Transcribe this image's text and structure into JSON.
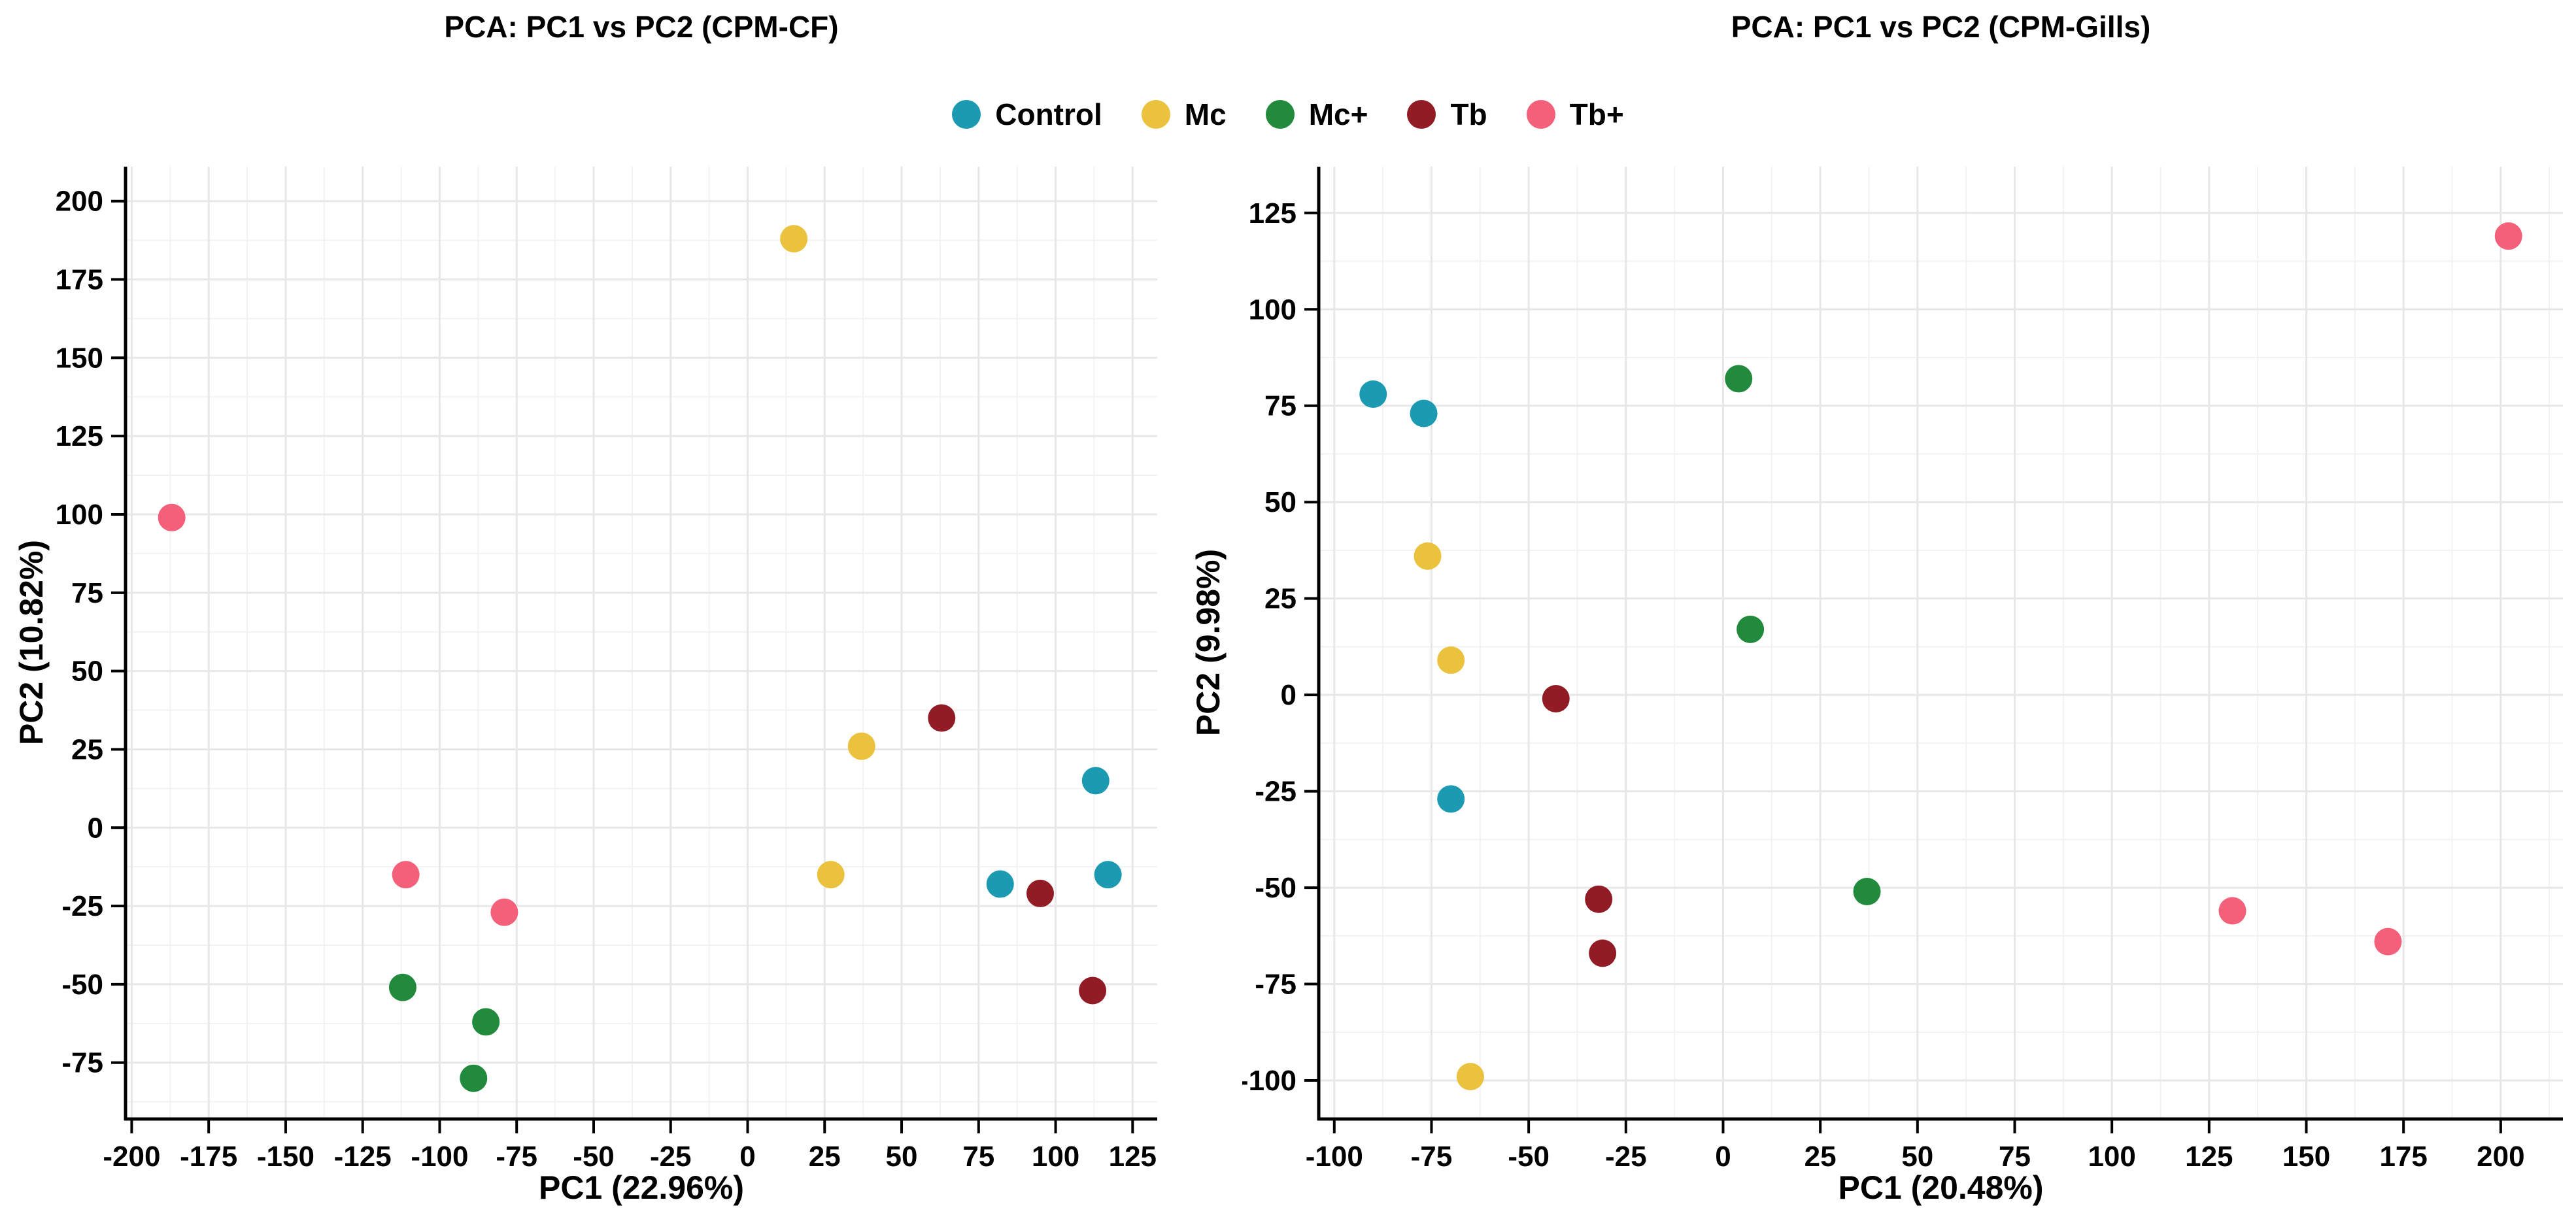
{
  "legend": {
    "items": [
      {
        "label": "Control",
        "color": "#1B9AB1"
      },
      {
        "label": "Mc",
        "color": "#EBC23D"
      },
      {
        "label": "Mc+",
        "color": "#218A3C"
      },
      {
        "label": "Tb",
        "color": "#911C26"
      },
      {
        "label": "Tb+",
        "color": "#F4607A"
      }
    ]
  },
  "style": {
    "major_grid_color": "#E7E7E7",
    "minor_grid_color": "#F2F2F2",
    "axis_color": "#000000",
    "background": "#FFFFFF"
  },
  "chart_data": [
    {
      "type": "scatter",
      "title": "PCA: PC1 vs PC2 (CPM-CF)",
      "xlabel": "PC1 (22.96%)",
      "ylabel": "PC2 (10.82%)",
      "xlim": [
        -202,
        133
      ],
      "ylim": [
        -93,
        211
      ],
      "xticks": [
        -200,
        -175,
        -150,
        -125,
        -100,
        -75,
        -50,
        -25,
        0,
        25,
        50,
        75,
        100,
        125
      ],
      "yticks": [
        -75,
        -50,
        -25,
        0,
        25,
        50,
        75,
        100,
        125,
        150,
        175,
        200
      ],
      "grid": "major+minor",
      "legend_position": "top-center-shared",
      "series": [
        {
          "name": "Control",
          "color": "#1B9AB1",
          "points": [
            [
              113,
              15
            ],
            [
              82,
              -18
            ],
            [
              117,
              -15
            ]
          ]
        },
        {
          "name": "Mc",
          "color": "#EBC23D",
          "points": [
            [
              15,
              188
            ],
            [
              37,
              26
            ],
            [
              27,
              -15
            ]
          ]
        },
        {
          "name": "Mc+",
          "color": "#218A3C",
          "points": [
            [
              -112,
              -51
            ],
            [
              -85,
              -62
            ],
            [
              -89,
              -80
            ]
          ]
        },
        {
          "name": "Tb",
          "color": "#911C26",
          "points": [
            [
              63,
              35
            ],
            [
              95,
              -21
            ],
            [
              112,
              -52
            ]
          ]
        },
        {
          "name": "Tb+",
          "color": "#F4607A",
          "points": [
            [
              -187,
              99
            ],
            [
              -111,
              -15
            ],
            [
              -79,
              -27
            ]
          ]
        }
      ]
    },
    {
      "type": "scatter",
      "title": "PCA: PC1 vs PC2 (CPM-Gills)",
      "xlabel": "PC1 (20.48%)",
      "ylabel": "PC2 (9.98%)",
      "xlim": [
        -104,
        216
      ],
      "ylim": [
        -110,
        137
      ],
      "xticks": [
        -100,
        -75,
        -50,
        -25,
        0,
        25,
        50,
        75,
        100,
        125,
        150,
        175,
        200
      ],
      "yticks": [
        -100,
        -75,
        -50,
        -25,
        0,
        25,
        50,
        75,
        100,
        125
      ],
      "grid": "major+minor",
      "legend_position": "top-center-shared",
      "series": [
        {
          "name": "Control",
          "color": "#1B9AB1",
          "points": [
            [
              -90,
              78
            ],
            [
              -77,
              73
            ],
            [
              -70,
              -27
            ]
          ]
        },
        {
          "name": "Mc",
          "color": "#EBC23D",
          "points": [
            [
              -76,
              36
            ],
            [
              -70,
              9
            ],
            [
              -65,
              -99
            ]
          ]
        },
        {
          "name": "Mc+",
          "color": "#218A3C",
          "points": [
            [
              4,
              82
            ],
            [
              7,
              17
            ],
            [
              37,
              -51
            ]
          ]
        },
        {
          "name": "Tb",
          "color": "#911C26",
          "points": [
            [
              -43,
              -1
            ],
            [
              -32,
              -53
            ],
            [
              -31,
              -67
            ]
          ]
        },
        {
          "name": "Tb+",
          "color": "#F4607A",
          "points": [
            [
              202,
              119
            ],
            [
              131,
              -56
            ],
            [
              171,
              -64
            ]
          ]
        }
      ]
    }
  ]
}
